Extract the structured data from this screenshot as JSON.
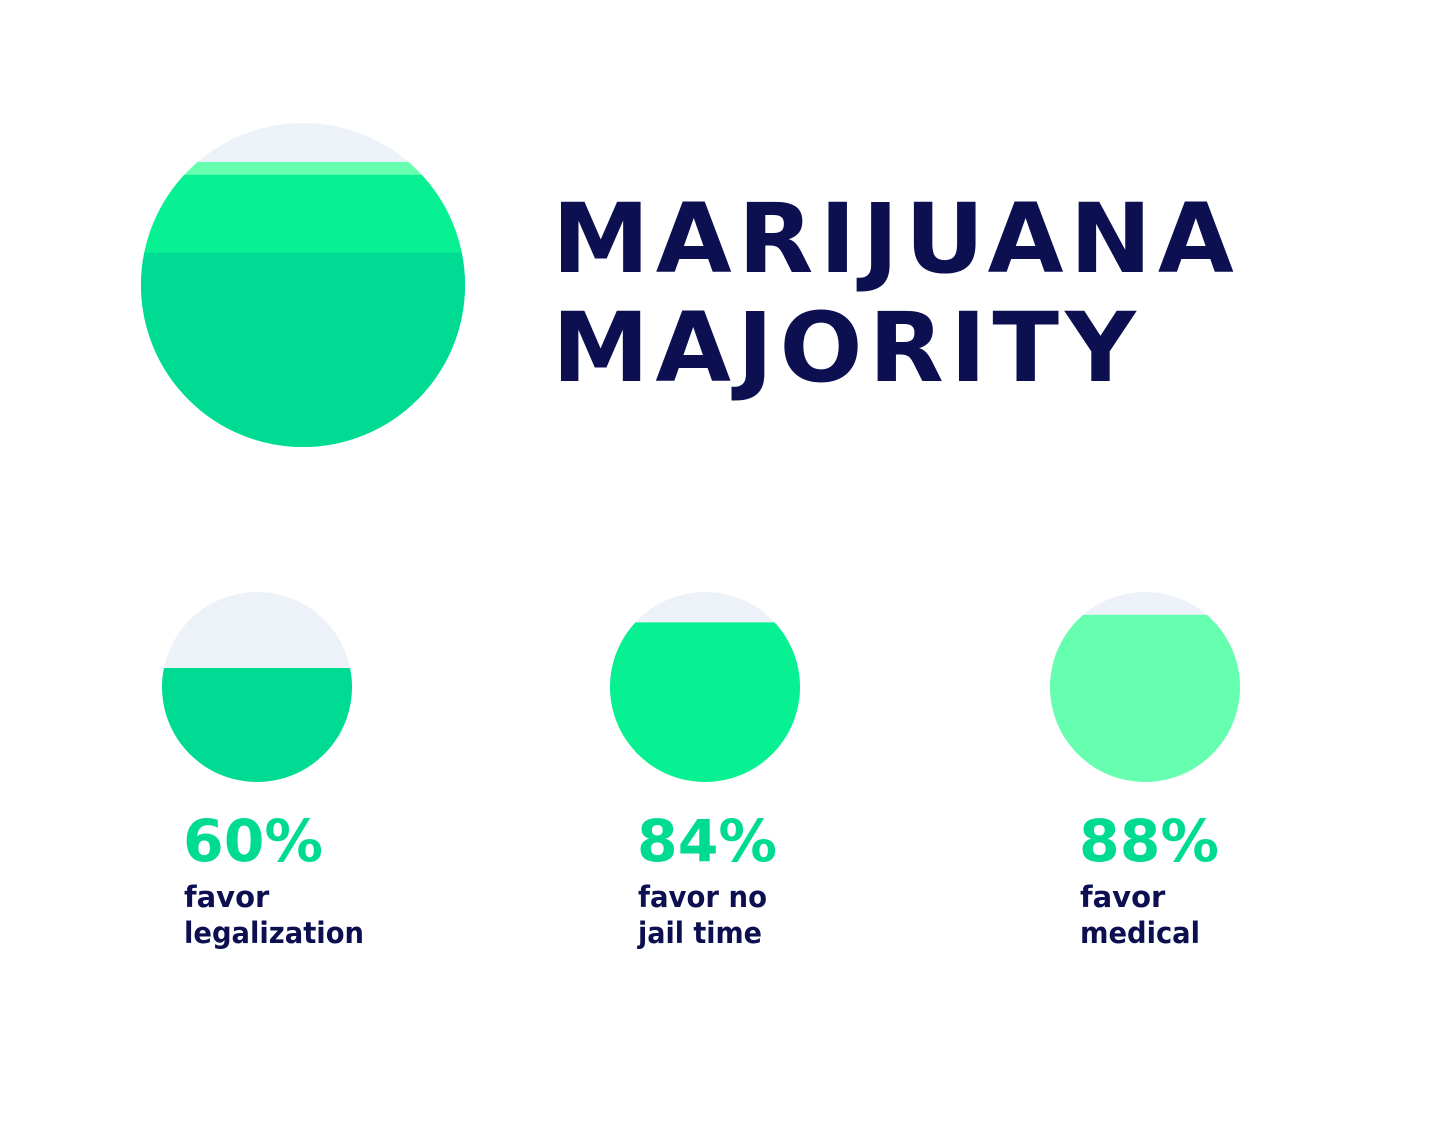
{
  "title": {
    "line1": "MARIJUANA",
    "line2": "MAJORITY"
  },
  "colors": {
    "background": "#ffffff",
    "empty": "#edf1f8",
    "title": "#0c0f50",
    "label": "#0c0f50",
    "value": "#00db93"
  },
  "chart_data": {
    "type": "pie",
    "title": "MARIJUANA MAJORITY",
    "items": [
      {
        "value": 60,
        "display": "60%",
        "label_lines": [
          "favor",
          "legalization"
        ],
        "color": "#00db93"
      },
      {
        "value": 84,
        "display": "84%",
        "label_lines": [
          "favor no",
          "jail time"
        ],
        "color": "#07f091"
      },
      {
        "value": 88,
        "display": "88%",
        "label_lines": [
          "favor",
          "medical"
        ],
        "color": "#66ffb0"
      }
    ]
  }
}
